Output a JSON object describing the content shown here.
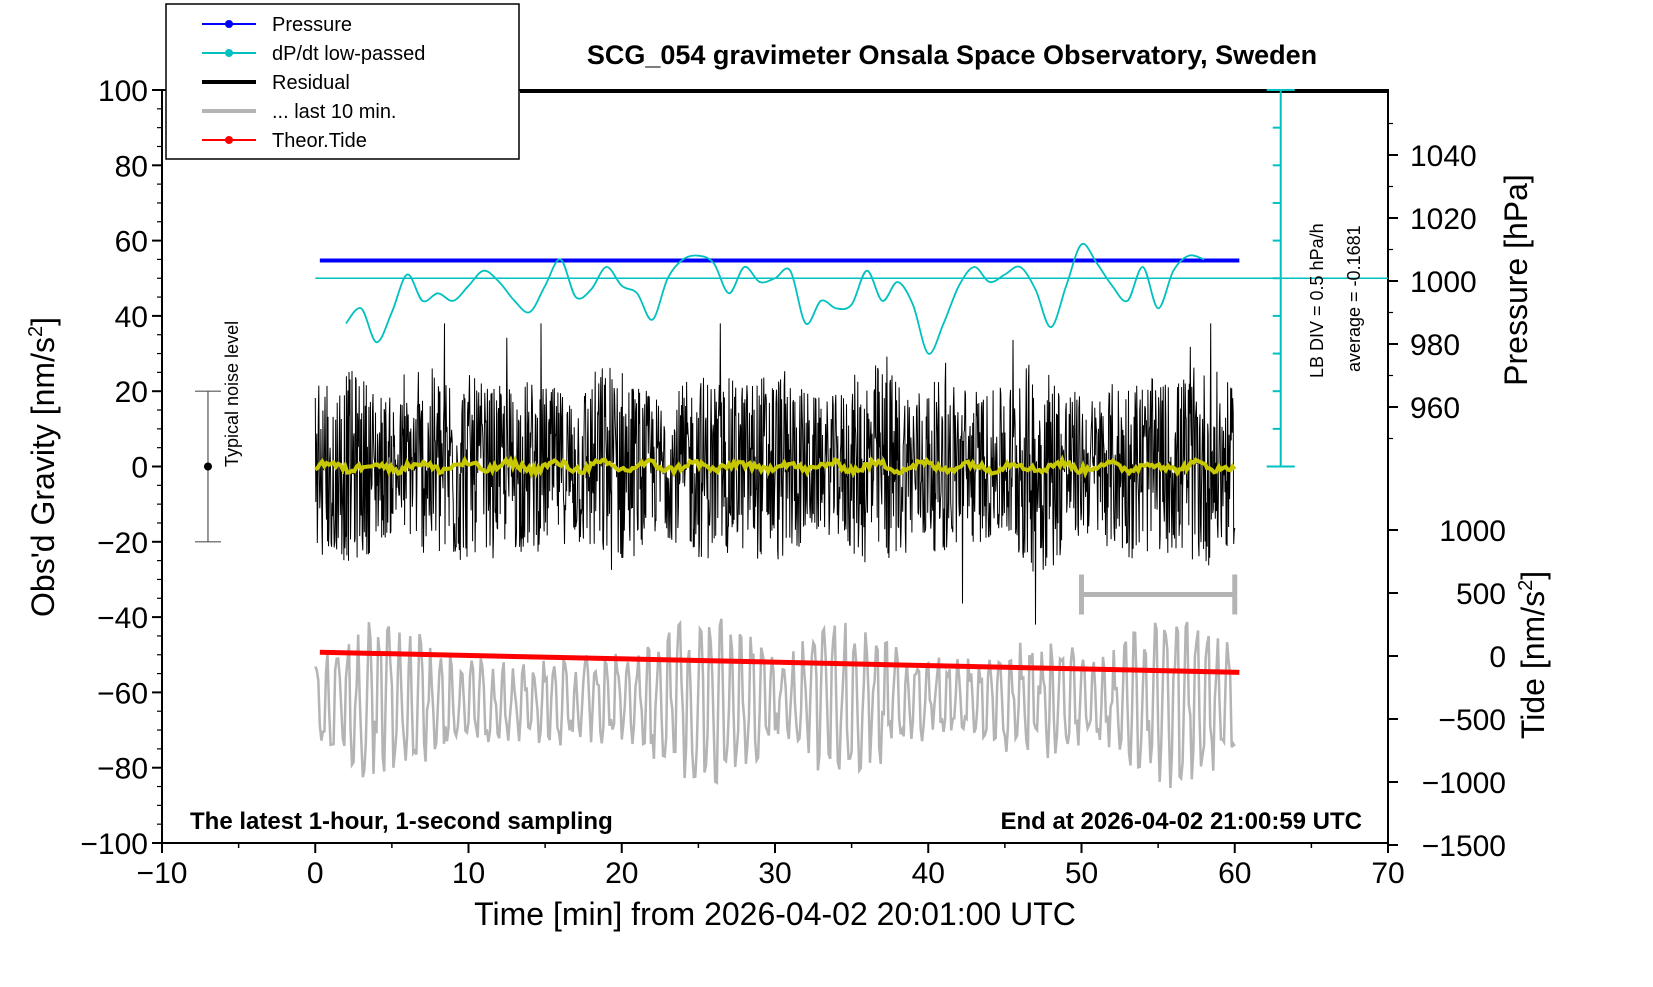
{
  "chart_data": {
    "type": "line",
    "title": "SCG_054 gravimeter Onsala Space Observatory, Sweden",
    "xlabel": "Time [min] from 2026-04-02 20:01:00 UTC",
    "ylabel_main": "Obs'd Gravity [nm/s",
    "ylabel_pressure": "Pressure [hPa]",
    "ylabel_tide": "Tide [nm/s",
    "unit_superscript": "2",
    "unit_close": "]",
    "xlim": [
      -10,
      70
    ],
    "ylim": [
      -100,
      100
    ],
    "pressure_lim": [
      940,
      1060
    ],
    "tide_lim": [
      -1500,
      1500
    ],
    "x_ticks": [
      "−10",
      "0",
      "10",
      "20",
      "30",
      "40",
      "50",
      "60",
      "70"
    ],
    "x_tick_values": [
      -10,
      0,
      10,
      20,
      30,
      40,
      50,
      60,
      70
    ],
    "y_ticks": [
      "100",
      "80",
      "60",
      "40",
      "20",
      "0",
      "−20",
      "−40",
      "−60",
      "−80",
      "−100"
    ],
    "y_tick_values": [
      100,
      80,
      60,
      40,
      20,
      0,
      -20,
      -40,
      -60,
      -80,
      -100
    ],
    "pressure_ticks": [
      "1040",
      "1020",
      "1000",
      "980",
      "960"
    ],
    "pressure_tick_values": [
      1040,
      1020,
      1000,
      980,
      960
    ],
    "tide_ticks": [
      "1000",
      "500",
      "0",
      "−500",
      "−1000",
      "−1500"
    ],
    "tide_tick_values": [
      1000,
      500,
      0,
      -500,
      -1000,
      -1500
    ],
    "legend": [
      {
        "label": "Pressure",
        "color": "#0000ff",
        "marker": true
      },
      {
        "label": "dP/dt low-passed",
        "color": "#00c0c0",
        "marker": true
      },
      {
        "label": "Residual",
        "color": "#000000",
        "marker": false
      },
      {
        "label": "... last 10 min.",
        "color": "#b4b4b4",
        "marker": false
      },
      {
        "label": "Theor.Tide",
        "color": "#ff0000",
        "marker": true
      }
    ],
    "series": [
      {
        "name": "Pressure",
        "color": "#0000ff",
        "axis": "pressure",
        "x": [
          0.3,
          60.3
        ],
        "values": [
          1006.5,
          1006.5
        ]
      },
      {
        "name": "dP/dt low-passed",
        "color": "#00c0c0",
        "axis": "main",
        "x": [
          2,
          3,
          4,
          5,
          6,
          7,
          8,
          9,
          10,
          11,
          12,
          13,
          14,
          15,
          16,
          17,
          18,
          19,
          20,
          21,
          22,
          23,
          24,
          25,
          26,
          27,
          28,
          29,
          30,
          31,
          32,
          33,
          34,
          35,
          36,
          37,
          38,
          39,
          40,
          41,
          42,
          43,
          44,
          45,
          46,
          47,
          48,
          49,
          50,
          51,
          52,
          53,
          54,
          55,
          56,
          57,
          58
        ],
        "values": [
          38,
          42,
          33,
          41,
          51,
          44,
          46,
          44,
          48,
          52,
          49,
          44,
          41,
          48,
          55,
          45,
          47,
          53,
          48,
          46,
          39,
          50,
          55,
          56,
          54,
          46,
          53,
          49,
          50,
          52,
          38,
          44,
          42,
          43,
          52,
          44,
          49,
          43,
          30,
          38,
          48,
          53,
          49,
          51,
          53,
          47,
          37,
          48,
          59,
          54,
          48,
          44,
          53,
          42,
          52,
          56,
          55
        ]
      },
      {
        "name": "Residual",
        "color": "#000000",
        "axis": "main",
        "x_range": [
          0,
          60
        ],
        "noise_amplitude": 22,
        "baseline": 0
      },
      {
        "name": "Residual smoothed",
        "color": "#c8c800",
        "axis": "main",
        "x_range": [
          0,
          60
        ],
        "noise_amplitude": 1.5,
        "baseline": 0
      },
      {
        "name": "... last 10 min.",
        "color": "#b4b4b4",
        "axis": "main",
        "x_range": [
          0,
          60
        ],
        "noise_amplitude": 14,
        "baseline": -62
      },
      {
        "name": "Theor.Tide",
        "color": "#ff0000",
        "axis": "tide",
        "x": [
          0.3,
          60.3
        ],
        "values": [
          30,
          -130
        ]
      }
    ],
    "zero_level_dpdt": 50,
    "noise_bar": {
      "label": "Typical noise level",
      "x": -7,
      "center": 0,
      "low": -20,
      "high": 20
    },
    "window_bar": {
      "x_start": 50,
      "x_end": 60,
      "y": -34
    },
    "lb_scale": {
      "label_div": "LB DIV = 0.5 hPa/h",
      "label_avg": "average = -0.1681",
      "x": 63,
      "y_top": 100,
      "y_bottom": 0,
      "divisions": 10
    },
    "annotation_left": "The latest 1-hour, 1-second sampling",
    "annotation_right": "End at 2026-04-02 21:00:59 UTC"
  }
}
